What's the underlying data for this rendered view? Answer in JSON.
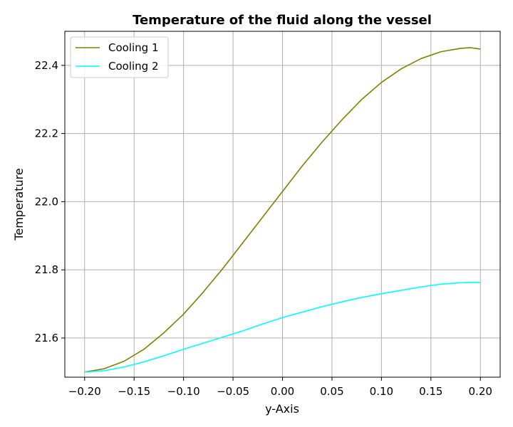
{
  "chart_data": {
    "type": "line",
    "title": "Temperature of the fluid along the vessel",
    "xlabel": "y-Axis",
    "ylabel": "Temperature",
    "xlim": [
      -0.22,
      0.22
    ],
    "ylim": [
      21.485,
      22.5
    ],
    "xticks": [
      -0.2,
      -0.15,
      -0.1,
      -0.05,
      0.0,
      0.05,
      0.1,
      0.15,
      0.2
    ],
    "xtick_labels": [
      "−0.20",
      "−0.15",
      "−0.10",
      "−0.05",
      "0.00",
      "0.05",
      "0.10",
      "0.15",
      "0.20"
    ],
    "yticks": [
      21.6,
      21.8,
      22.0,
      22.2,
      22.4
    ],
    "ytick_labels": [
      "21.6",
      "21.8",
      "22.0",
      "22.2",
      "22.4"
    ],
    "grid": true,
    "legend_position": "top-left",
    "x": [
      -0.2,
      -0.18,
      -0.16,
      -0.14,
      -0.12,
      -0.1,
      -0.08,
      -0.06,
      -0.04,
      -0.02,
      0.0,
      0.02,
      0.04,
      0.06,
      0.08,
      0.1,
      0.12,
      0.14,
      0.16,
      0.18,
      0.19,
      0.2
    ],
    "series": [
      {
        "name": "Cooling 1",
        "color": "#808000",
        "values": [
          21.5,
          21.51,
          21.532,
          21.567,
          21.615,
          21.67,
          21.735,
          21.805,
          21.88,
          21.955,
          22.03,
          22.105,
          22.175,
          22.24,
          22.3,
          22.35,
          22.39,
          22.42,
          22.44,
          22.45,
          22.452,
          22.448
        ]
      },
      {
        "name": "Cooling 2",
        "color": "#00FFFF",
        "values": [
          21.5,
          21.504,
          21.515,
          21.53,
          21.548,
          21.567,
          21.585,
          21.603,
          21.621,
          21.641,
          21.66,
          21.676,
          21.692,
          21.706,
          21.719,
          21.73,
          21.74,
          21.75,
          21.758,
          21.762,
          21.763,
          21.763
        ]
      }
    ]
  }
}
